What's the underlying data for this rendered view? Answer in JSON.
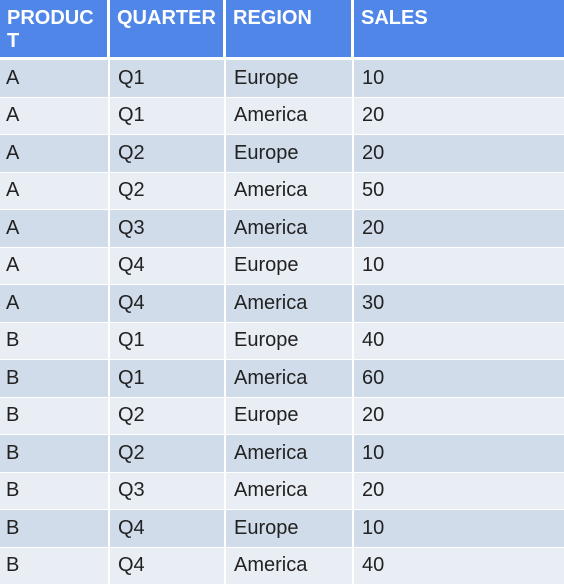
{
  "table": {
    "headers": [
      "PRODUCT",
      "QUARTER",
      "REGION",
      "SALES"
    ],
    "rows": [
      [
        "A",
        "Q1",
        "Europe",
        "10"
      ],
      [
        "A",
        "Q1",
        "America",
        "20"
      ],
      [
        "A",
        "Q2",
        "Europe",
        "20"
      ],
      [
        "A",
        "Q2",
        "America",
        "50"
      ],
      [
        "A",
        "Q3",
        "America",
        "20"
      ],
      [
        "A",
        "Q4",
        "Europe",
        "10"
      ],
      [
        "A",
        "Q4",
        "America",
        "30"
      ],
      [
        "B",
        "Q1",
        "Europe",
        "40"
      ],
      [
        "B",
        "Q1",
        "America",
        "60"
      ],
      [
        "B",
        "Q2",
        "Europe",
        "20"
      ],
      [
        "B",
        "Q2",
        "America",
        "10"
      ],
      [
        "B",
        "Q3",
        "America",
        "20"
      ],
      [
        "B",
        "Q4",
        "Europe",
        "10"
      ],
      [
        "B",
        "Q4",
        "America",
        "40"
      ]
    ]
  },
  "colors": {
    "header_bg": "#4f86e8",
    "row_odd_bg": "#d0dcea",
    "row_even_bg": "#e9eef5"
  }
}
